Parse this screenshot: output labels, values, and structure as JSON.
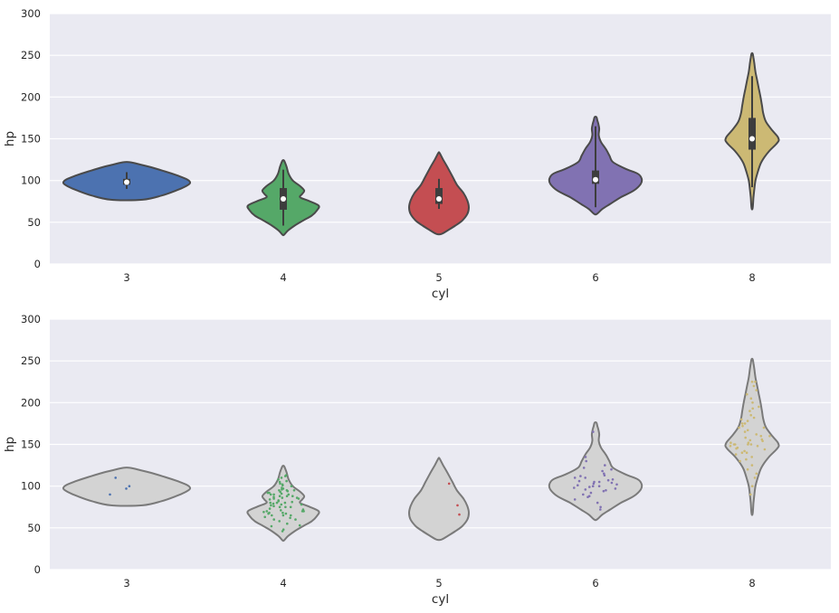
{
  "chart_data": [
    {
      "type": "violin",
      "xlabel": "cyl",
      "ylabel": "hp",
      "ylim": [
        0,
        300
      ],
      "yticks": [
        0,
        50,
        100,
        150,
        200,
        250,
        300
      ],
      "grid": true,
      "inner": "box",
      "categories": [
        "3",
        "4",
        "5",
        "6",
        "8"
      ],
      "colors": [
        "#4c72b0",
        "#55a868",
        "#c44e52",
        "#8172b2",
        "#ccb974"
      ],
      "violins": [
        {
          "category": "3",
          "min": 77,
          "max": 122,
          "profile": [
            [
              77,
              0.25
            ],
            [
              82,
              0.55
            ],
            [
              88,
              0.78
            ],
            [
              93,
              0.93
            ],
            [
              97,
              1.0
            ],
            [
              101,
              0.96
            ],
            [
              106,
              0.8
            ],
            [
              111,
              0.6
            ],
            [
              116,
              0.38
            ],
            [
              119,
              0.22
            ],
            [
              122,
              0.05
            ]
          ],
          "box": {
            "q1": 95,
            "median": 98,
            "q3": 102,
            "whisker_low": 90,
            "whisker_high": 110
          }
        },
        {
          "category": "4",
          "min": 35,
          "max": 124,
          "profile": [
            [
              35,
              0.02
            ],
            [
              40,
              0.12
            ],
            [
              46,
              0.3
            ],
            [
              52,
              0.52
            ],
            [
              58,
              0.75
            ],
            [
              64,
              0.88
            ],
            [
              70,
              0.93
            ],
            [
              76,
              0.65
            ],
            [
              80,
              0.44
            ],
            [
              84,
              0.5
            ],
            [
              88,
              0.55
            ],
            [
              93,
              0.45
            ],
            [
              100,
              0.25
            ],
            [
              108,
              0.14
            ],
            [
              116,
              0.09
            ],
            [
              121,
              0.05
            ],
            [
              124,
              0.02
            ]
          ],
          "box": {
            "q1": 65,
            "median": 78,
            "q3": 91,
            "whisker_low": 46,
            "whisker_high": 113
          }
        },
        {
          "category": "5",
          "min": 36,
          "max": 133,
          "profile": [
            [
              36,
              0.08
            ],
            [
              40,
              0.28
            ],
            [
              46,
              0.55
            ],
            [
              52,
              0.78
            ],
            [
              60,
              0.95
            ],
            [
              68,
              1.0
            ],
            [
              76,
              0.95
            ],
            [
              85,
              0.82
            ],
            [
              95,
              0.6
            ],
            [
              105,
              0.45
            ],
            [
              115,
              0.3
            ],
            [
              125,
              0.14
            ],
            [
              133,
              0.02
            ]
          ],
          "box": {
            "q1": 72,
            "median": 78,
            "q3": 91,
            "whisker_low": 66,
            "whisker_high": 102
          }
        },
        {
          "category": "6",
          "min": 60,
          "max": 176,
          "profile": [
            [
              60,
              0.03
            ],
            [
              66,
              0.15
            ],
            [
              72,
              0.32
            ],
            [
              80,
              0.55
            ],
            [
              88,
              0.83
            ],
            [
              96,
              0.98
            ],
            [
              102,
              1.0
            ],
            [
              108,
              0.92
            ],
            [
              114,
              0.65
            ],
            [
              122,
              0.38
            ],
            [
              130,
              0.3
            ],
            [
              138,
              0.22
            ],
            [
              146,
              0.12
            ],
            [
              154,
              0.07
            ],
            [
              162,
              0.08
            ],
            [
              168,
              0.06
            ],
            [
              172,
              0.04
            ],
            [
              176,
              0.02
            ]
          ],
          "box": {
            "q1": 96,
            "median": 101,
            "q3": 112,
            "whisker_low": 68,
            "whisker_high": 165
          }
        },
        {
          "category": "8",
          "min": 67,
          "max": 252,
          "profile": [
            [
              67,
              0.02
            ],
            [
              80,
              0.05
            ],
            [
              90,
              0.08
            ],
            [
              100,
              0.12
            ],
            [
              110,
              0.2
            ],
            [
              120,
              0.3
            ],
            [
              128,
              0.44
            ],
            [
              136,
              0.63
            ],
            [
              143,
              0.84
            ],
            [
              148,
              0.95
            ],
            [
              153,
              0.9
            ],
            [
              160,
              0.72
            ],
            [
              170,
              0.5
            ],
            [
              180,
              0.4
            ],
            [
              190,
              0.35
            ],
            [
              200,
              0.3
            ],
            [
              210,
              0.24
            ],
            [
              220,
              0.18
            ],
            [
              230,
              0.12
            ],
            [
              240,
              0.08
            ],
            [
              247,
              0.05
            ],
            [
              252,
              0.02
            ]
          ],
          "box": {
            "q1": 137,
            "median": 150,
            "q3": 175,
            "whisker_low": 92,
            "whisker_high": 225
          }
        }
      ]
    },
    {
      "type": "violin",
      "xlabel": "cyl",
      "ylabel": "hp",
      "ylim": [
        0,
        300
      ],
      "yticks": [
        0,
        50,
        100,
        150,
        200,
        250,
        300
      ],
      "grid": true,
      "inner": "points",
      "violin_color": "#d3d3d3",
      "categories": [
        "3",
        "4",
        "5",
        "6",
        "8"
      ],
      "point_colors": [
        "#4c72b0",
        "#55a868",
        "#c44e52",
        "#8172b2",
        "#ccb974"
      ],
      "points": [
        [
          97,
          100,
          90,
          110
        ],
        [
          46,
          48,
          52,
          53,
          55,
          58,
          60,
          60,
          62,
          63,
          65,
          65,
          65,
          67,
          67,
          68,
          68,
          69,
          70,
          70,
          70,
          71,
          72,
          73,
          75,
          75,
          75,
          76,
          77,
          78,
          78,
          79,
          80,
          80,
          80,
          81,
          82,
          83,
          84,
          85,
          85,
          86,
          86,
          87,
          88,
          88,
          88,
          90,
          90,
          90,
          91,
          92,
          92,
          93,
          94,
          95,
          95,
          95,
          96,
          97,
          98,
          100,
          101,
          102,
          103,
          105,
          106,
          108,
          110,
          112,
          113
        ],
        [
          66,
          77,
          103
        ],
        [
          72,
          75,
          80,
          84,
          87,
          88,
          90,
          92,
          94,
          95,
          96,
          97,
          98,
          99,
          100,
          100,
          101,
          102,
          103,
          104,
          105,
          105,
          106,
          107,
          108,
          110,
          110,
          112,
          113,
          115,
          118,
          120,
          122,
          125,
          130,
          135,
          165
        ],
        [
          90,
          100,
          110,
          115,
          120,
          125,
          130,
          132,
          135,
          138,
          140,
          140,
          142,
          144,
          145,
          146,
          148,
          148,
          150,
          150,
          150,
          150,
          152,
          152,
          154,
          155,
          156,
          158,
          160,
          160,
          162,
          165,
          167,
          170,
          170,
          172,
          175,
          175,
          178,
          180,
          182,
          185,
          190,
          193,
          195,
          200,
          205,
          210,
          215,
          220,
          225,
          225
        ]
      ],
      "violins": [
        {
          "category": "3",
          "min": 77,
          "max": 122,
          "profile": [
            [
              77,
              0.25
            ],
            [
              82,
              0.55
            ],
            [
              88,
              0.78
            ],
            [
              93,
              0.93
            ],
            [
              97,
              1.0
            ],
            [
              101,
              0.96
            ],
            [
              106,
              0.8
            ],
            [
              111,
              0.6
            ],
            [
              116,
              0.38
            ],
            [
              119,
              0.22
            ],
            [
              122,
              0.05
            ]
          ]
        },
        {
          "category": "4",
          "min": 35,
          "max": 124,
          "profile": [
            [
              35,
              0.02
            ],
            [
              40,
              0.12
            ],
            [
              46,
              0.3
            ],
            [
              52,
              0.52
            ],
            [
              58,
              0.75
            ],
            [
              64,
              0.88
            ],
            [
              70,
              0.93
            ],
            [
              76,
              0.65
            ],
            [
              80,
              0.44
            ],
            [
              84,
              0.5
            ],
            [
              88,
              0.55
            ],
            [
              93,
              0.45
            ],
            [
              100,
              0.25
            ],
            [
              108,
              0.14
            ],
            [
              116,
              0.09
            ],
            [
              121,
              0.05
            ],
            [
              124,
              0.02
            ]
          ]
        },
        {
          "category": "5",
          "min": 36,
          "max": 133,
          "profile": [
            [
              36,
              0.08
            ],
            [
              40,
              0.28
            ],
            [
              46,
              0.55
            ],
            [
              52,
              0.78
            ],
            [
              60,
              0.95
            ],
            [
              68,
              1.0
            ],
            [
              76,
              0.95
            ],
            [
              85,
              0.82
            ],
            [
              95,
              0.6
            ],
            [
              105,
              0.45
            ],
            [
              115,
              0.3
            ],
            [
              125,
              0.14
            ],
            [
              133,
              0.02
            ]
          ]
        },
        {
          "category": "6",
          "min": 60,
          "max": 176,
          "profile": [
            [
              60,
              0.03
            ],
            [
              66,
              0.15
            ],
            [
              72,
              0.32
            ],
            [
              80,
              0.55
            ],
            [
              88,
              0.83
            ],
            [
              96,
              0.98
            ],
            [
              102,
              1.0
            ],
            [
              108,
              0.92
            ],
            [
              114,
              0.65
            ],
            [
              122,
              0.38
            ],
            [
              130,
              0.3
            ],
            [
              138,
              0.22
            ],
            [
              146,
              0.12
            ],
            [
              154,
              0.07
            ],
            [
              162,
              0.08
            ],
            [
              168,
              0.06
            ],
            [
              172,
              0.04
            ],
            [
              176,
              0.02
            ]
          ]
        },
        {
          "category": "8",
          "min": 67,
          "max": 252,
          "profile": [
            [
              67,
              0.02
            ],
            [
              80,
              0.05
            ],
            [
              90,
              0.08
            ],
            [
              100,
              0.12
            ],
            [
              110,
              0.2
            ],
            [
              120,
              0.3
            ],
            [
              128,
              0.44
            ],
            [
              136,
              0.63
            ],
            [
              143,
              0.84
            ],
            [
              148,
              0.95
            ],
            [
              153,
              0.9
            ],
            [
              160,
              0.72
            ],
            [
              170,
              0.5
            ],
            [
              180,
              0.4
            ],
            [
              190,
              0.35
            ],
            [
              200,
              0.3
            ],
            [
              210,
              0.24
            ],
            [
              220,
              0.18
            ],
            [
              230,
              0.12
            ],
            [
              240,
              0.08
            ],
            [
              247,
              0.05
            ],
            [
              252,
              0.02
            ]
          ]
        }
      ]
    }
  ]
}
